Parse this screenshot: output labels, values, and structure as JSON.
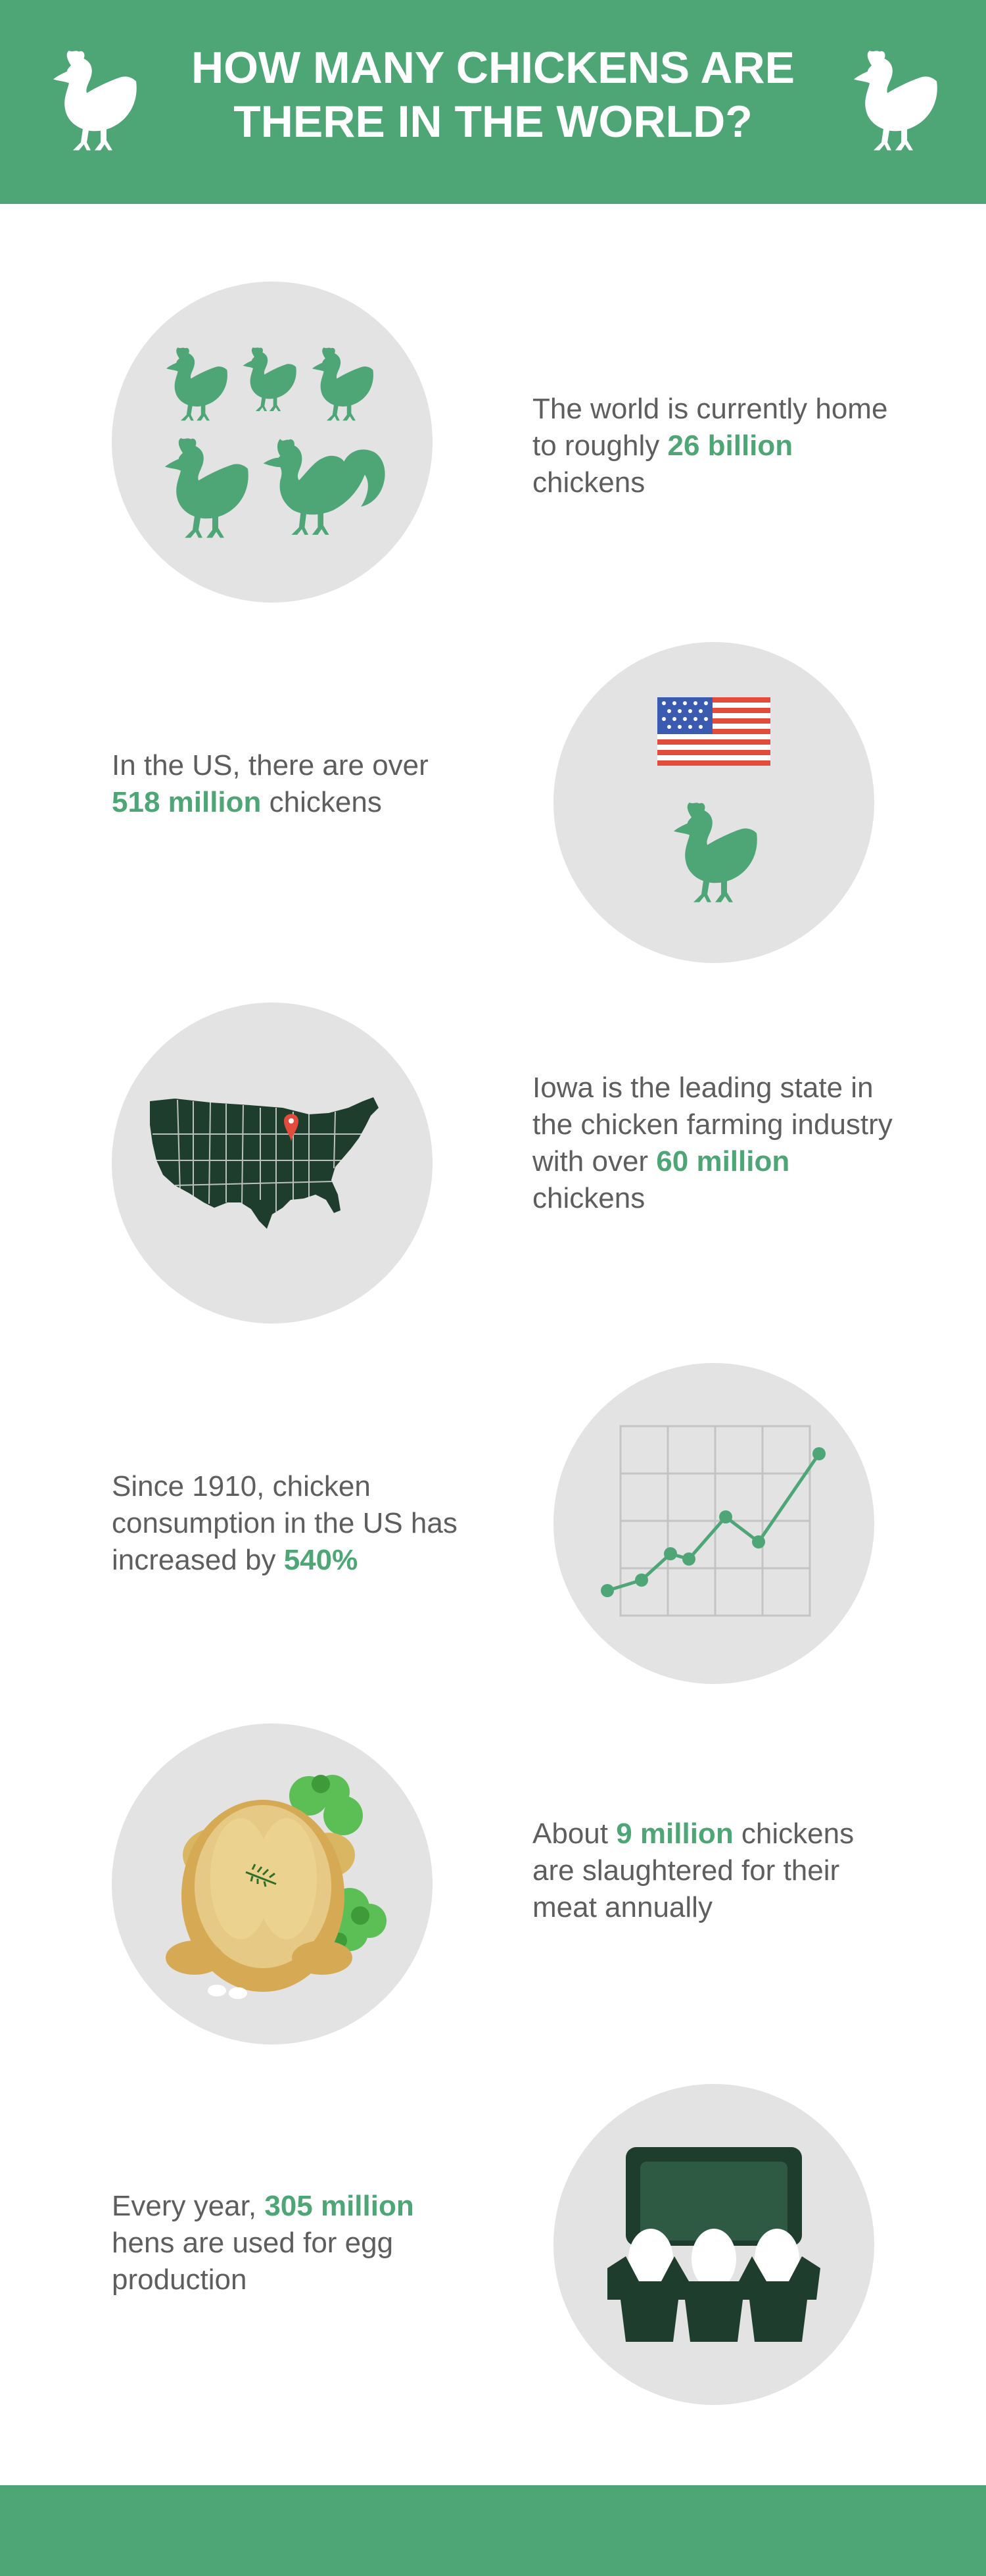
{
  "header": {
    "title": "HOW MANY CHICKENS ARE THERE IN THE WORLD?"
  },
  "facts": [
    {
      "pre": "The world is currently home to roughly ",
      "highlight": "26 billion",
      "post": " chickens",
      "icon": "chicken-flock-icon"
    },
    {
      "pre": "In the US, there are over ",
      "highlight": "518 million",
      "post": " chickens",
      "icon": "us-flag-chicken-icon"
    },
    {
      "pre": "Iowa is the leading state in the chicken farming industry with over ",
      "highlight": "60 million",
      "post": " chickens",
      "icon": "us-map-pin-icon"
    },
    {
      "pre": "Since 1910, chicken consumption in the US has increased by ",
      "highlight": "540%",
      "post": "",
      "icon": "line-graph-icon"
    },
    {
      "pre": "About ",
      "highlight": "9 million",
      "post": " chickens are slaughtered for their meat annually",
      "icon": "roast-chicken-icon"
    },
    {
      "pre": "Every year, ",
      "highlight": "305 million",
      "post": " hens are used for egg production",
      "icon": "egg-carton-icon"
    }
  ],
  "colors": {
    "brand_green": "#4ea677",
    "dark_green": "#1e3d2d",
    "circle_gray": "#e3e3e3",
    "text_gray": "#5e5e5e"
  }
}
